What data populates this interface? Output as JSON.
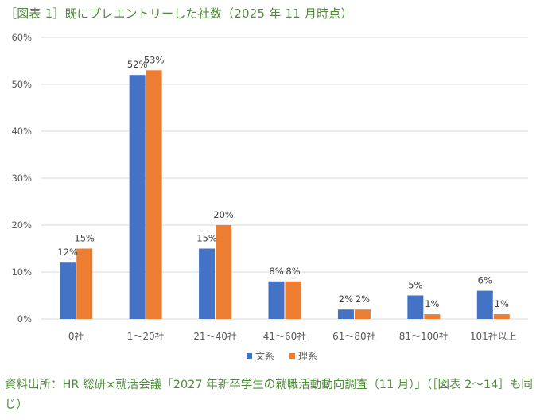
{
  "title": "［図表 1］既にプレエントリーした社数（2025 年 11 月時点）",
  "source": "資料出所：HR 総研×就活会議「2027 年新卒学生の就職活動動向調査（11 月）」（［図表 2～14］も同じ）",
  "colors": {
    "series1": "#4472c4",
    "series2": "#ed7d31",
    "grid": "#d9d9d9",
    "text": "#595959",
    "title": "#4e8a3a"
  },
  "chart_data": {
    "type": "bar",
    "title": "［図表 1］既にプレエントリーした社数（2025 年 11 月時点）",
    "categories": [
      "0社",
      "1～20社",
      "21～40社",
      "41～60社",
      "61～80社",
      "81～100社",
      "101社以上"
    ],
    "series": [
      {
        "name": "文系",
        "values": [
          12,
          52,
          15,
          8,
          2,
          5,
          6
        ],
        "labels": [
          "12%",
          "52%",
          "15%",
          "8%",
          "2%",
          "5%",
          "6%"
        ],
        "color": "#4472c4"
      },
      {
        "name": "理系",
        "values": [
          15,
          53,
          20,
          8,
          2,
          1,
          1
        ],
        "labels": [
          "15%",
          "53%",
          "20%",
          "8%",
          "2%",
          "1%",
          "1%"
        ],
        "color": "#ed7d31"
      }
    ],
    "ylim": [
      0,
      60
    ],
    "yticks": [
      "0%",
      "10%",
      "20%",
      "30%",
      "40%",
      "50%",
      "60%"
    ],
    "grid": true,
    "legend": "bottom-center"
  }
}
